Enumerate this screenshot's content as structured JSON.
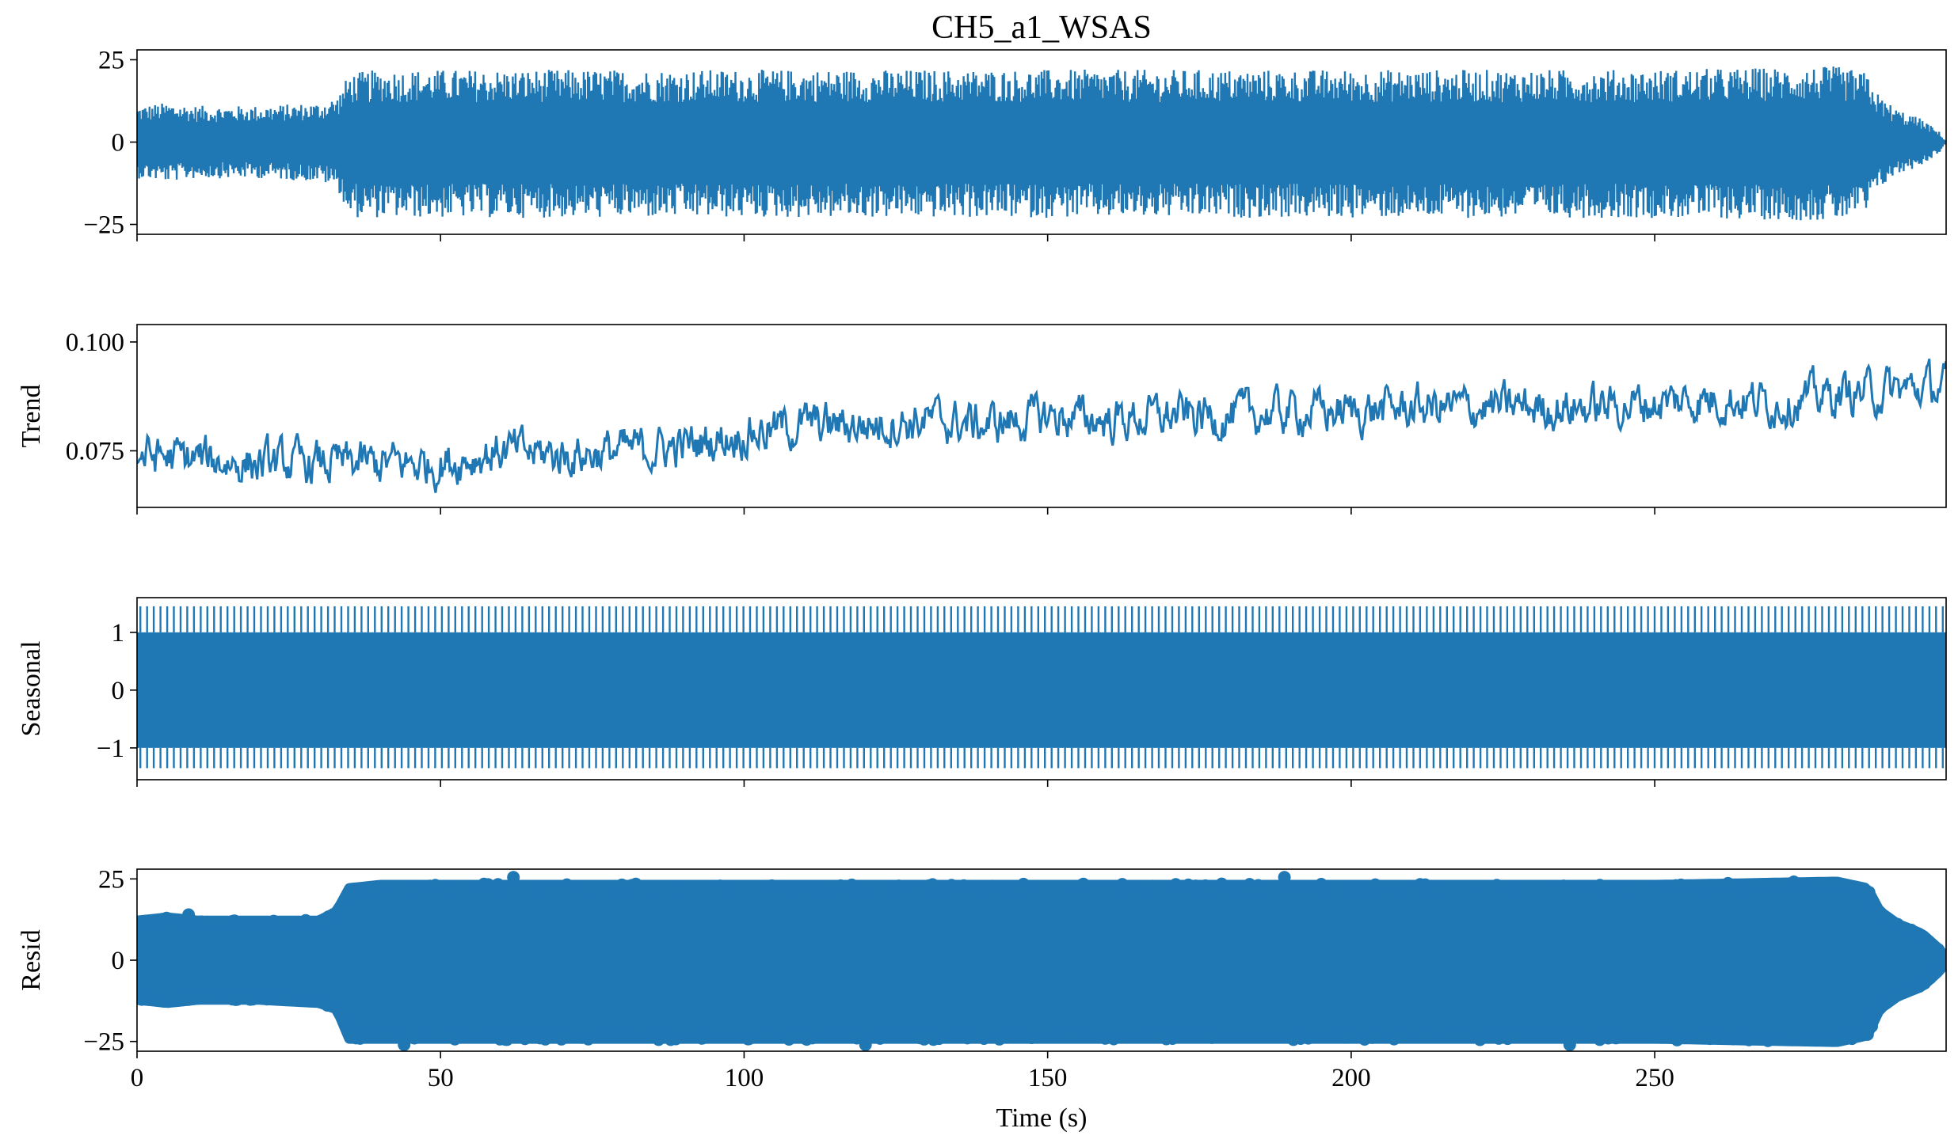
{
  "chart_data": {
    "type": "line",
    "title": "CH5_a1_WSAS",
    "xlabel": "Time (s)",
    "xlim": [
      0,
      298
    ],
    "xticks": [
      0,
      50,
      100,
      150,
      200,
      250
    ],
    "color": "#1f77b4",
    "panels": [
      {
        "id": "observed",
        "type": "line",
        "ylabel": "",
        "ylim": [
          -28,
          28
        ],
        "yticks": [
          -25,
          0,
          25
        ],
        "ytick_labels": [
          "−25",
          "0",
          "25"
        ],
        "envelope": {
          "x": [
            0,
            5,
            10,
            20,
            30,
            33,
            35,
            40,
            60,
            100,
            150,
            200,
            250,
            280,
            285,
            287,
            290,
            294,
            297,
            298
          ],
          "upper": [
            11,
            12,
            11,
            11,
            12,
            14,
            21,
            22,
            22,
            22,
            22,
            22,
            22,
            23,
            21,
            14,
            10,
            7,
            3,
            0
          ],
          "lower": [
            -11,
            -12,
            -11,
            -11,
            -12,
            -14,
            -23,
            -23,
            -23,
            -23,
            -23,
            -23,
            -23,
            -24,
            -22,
            -14,
            -10,
            -7,
            -3,
            0
          ]
        }
      },
      {
        "id": "trend",
        "type": "line",
        "ylabel": "Trend",
        "ylim": [
          0.062,
          0.104
        ],
        "yticks": [
          0.075,
          0.1
        ],
        "ytick_labels": [
          "0.075",
          "0.100"
        ],
        "center": {
          "x": [
            0,
            10,
            20,
            30,
            40,
            50,
            60,
            70,
            80,
            90,
            100,
            110,
            120,
            130,
            140,
            150,
            160,
            170,
            180,
            190,
            200,
            210,
            220,
            230,
            240,
            250,
            260,
            270,
            280,
            290,
            298
          ],
          "y": [
            0.074,
            0.073,
            0.072,
            0.072,
            0.072,
            0.072,
            0.075,
            0.074,
            0.075,
            0.076,
            0.079,
            0.081,
            0.081,
            0.082,
            0.081,
            0.083,
            0.082,
            0.083,
            0.083,
            0.084,
            0.084,
            0.085,
            0.085,
            0.085,
            0.085,
            0.086,
            0.087,
            0.086,
            0.088,
            0.089,
            0.09
          ]
        },
        "spread": 0.006
      },
      {
        "id": "seasonal",
        "type": "line",
        "ylabel": "Seasonal",
        "ylim": [
          -1.55,
          1.6
        ],
        "yticks": [
          -1,
          0,
          1
        ],
        "ytick_labels": [
          "−1",
          "0",
          "1"
        ],
        "band": [
          -1.0,
          1.0
        ],
        "spikes": [
          -1.35,
          1.45
        ],
        "spike_count": 270
      },
      {
        "id": "resid",
        "type": "scatter",
        "ylabel": "Resid",
        "ylim": [
          -28,
          28
        ],
        "yticks": [
          -25,
          0,
          25
        ],
        "ytick_labels": [
          "−25",
          "0",
          "25"
        ],
        "envelope": {
          "x": [
            0,
            5,
            10,
            20,
            30,
            33,
            35,
            40,
            60,
            100,
            150,
            200,
            250,
            280,
            285,
            287,
            290,
            294,
            297,
            298
          ],
          "upper": [
            12,
            13,
            12,
            12,
            12,
            15,
            22,
            23,
            23,
            23,
            23,
            23,
            23,
            24,
            22,
            15,
            11,
            8,
            3,
            0
          ],
          "lower": [
            -12,
            -13,
            -12,
            -12,
            -13,
            -15,
            -24,
            -24,
            -24,
            -24,
            -24,
            -24,
            -24,
            -25,
            -23,
            -15,
            -11,
            -8,
            -3,
            0
          ]
        },
        "outliers": [
          {
            "x": 62,
            "y": 25.5
          },
          {
            "x": 189,
            "y": 25.5
          },
          {
            "x": 8.5,
            "y": 14
          },
          {
            "x": 44,
            "y": -26
          },
          {
            "x": 120,
            "y": -26
          },
          {
            "x": 236,
            "y": -26
          }
        ]
      }
    ]
  }
}
